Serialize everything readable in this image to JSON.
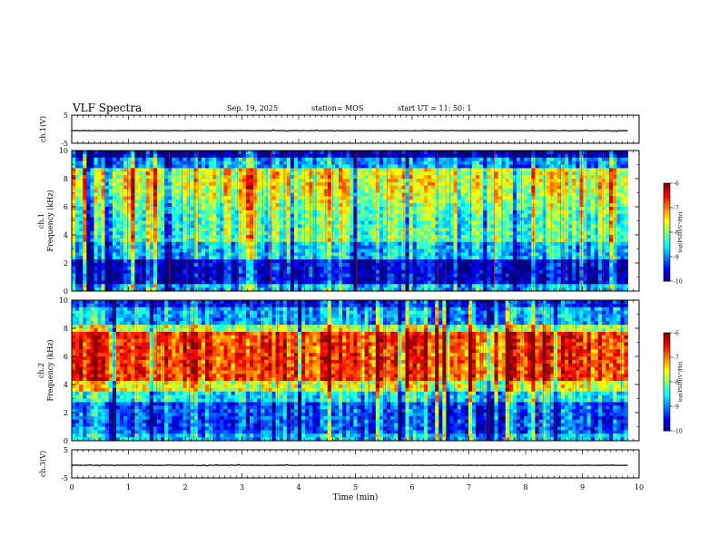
{
  "header": {
    "title": "VLF Spectra",
    "date": "Sep. 19, 2025",
    "station": "station= MOS",
    "start": "start  UT =   11: 50: 1"
  },
  "chart_data": [
    {
      "type": "line",
      "ylabel": "ch.1(V)",
      "ylim": [
        -5,
        5
      ],
      "yticks": [
        "5",
        "-5"
      ],
      "description_value": "flat trace near -0.5 V",
      "x": [
        0,
        9.8
      ],
      "values": [
        -0.5,
        -0.5
      ]
    },
    {
      "type": "heatmap",
      "ylabel": "ch.1\nFrequency (kHz)",
      "xlim": [
        0,
        10
      ],
      "ylim": [
        0,
        10
      ],
      "yticks": [
        "0",
        "2",
        "4",
        "6",
        "8",
        "10"
      ],
      "data_x_extent": [
        0,
        9.8
      ],
      "colorbar": {
        "label": "log(PSD)(V²/Hz)",
        "range": [
          -10,
          -6
        ],
        "ticks": [
          "-6",
          "-7",
          "-8",
          "-9",
          "-10"
        ]
      }
    },
    {
      "type": "heatmap",
      "ylabel": "ch.2\nFrequency (kHz)",
      "xlim": [
        0,
        10
      ],
      "ylim": [
        0,
        10
      ],
      "yticks": [
        "0",
        "2",
        "4",
        "6",
        "8",
        "10"
      ],
      "data_x_extent": [
        0,
        9.8
      ],
      "colorbar": {
        "label": "log(PSD)(V²/Hz)",
        "range": [
          -10,
          -6
        ],
        "ticks": [
          "-6",
          "-7",
          "-8",
          "-9",
          "-10"
        ]
      }
    },
    {
      "type": "line",
      "ylabel": "ch.3(V)",
      "ylim": [
        -5,
        5
      ],
      "yticks": [
        "5",
        "-5"
      ],
      "x": [
        0,
        9.8
      ],
      "values": [
        -0.5,
        -0.5
      ],
      "xlabel": "Time (min)",
      "xticks": [
        "0",
        "1",
        "2",
        "3",
        "4",
        "5",
        "6",
        "7",
        "8",
        "9",
        "10"
      ]
    }
  ]
}
